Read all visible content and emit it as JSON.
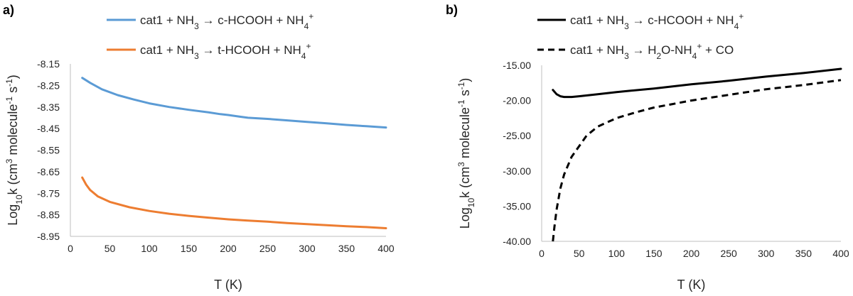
{
  "chart_data": [
    {
      "type": "line",
      "panel_label": "a)",
      "xlabel": "T (K)",
      "ylabel": {
        "pre": "Log",
        "sub": "10",
        "mid": "k (cm",
        "sup1": "3",
        "mid2": " molecule",
        "sup2": "-1",
        "mid3": " s",
        "sup3": "-1",
        "post": ")"
      },
      "xlim": [
        0,
        400
      ],
      "ylim": [
        -8.95,
        -8.15
      ],
      "x_ticks": [
        "0",
        "50",
        "100",
        "150",
        "200",
        "250",
        "300",
        "350",
        "400"
      ],
      "y_ticks": [
        "-8.15",
        "-8.25",
        "-8.35",
        "-8.45",
        "-8.55",
        "-8.65",
        "-8.75",
        "-8.85",
        "-8.95"
      ],
      "grid": false,
      "legend_position": "top",
      "series": [
        {
          "legend": {
            "a": "cat1 + NH",
            "b": "3",
            "c": " → c-HCOOH + NH",
            "d": "4",
            "e": "+"
          },
          "color": "#5B9BD5",
          "dash": "solid",
          "points": [
            [
              15,
              -8.215
            ],
            [
              25,
              -8.238
            ],
            [
              40,
              -8.268
            ],
            [
              60,
              -8.295
            ],
            [
              80,
              -8.315
            ],
            [
              100,
              -8.333
            ],
            [
              125,
              -8.35
            ],
            [
              150,
              -8.363
            ],
            [
              175,
              -8.375
            ],
            [
              190,
              -8.383
            ],
            [
              200,
              -8.387
            ],
            [
              215,
              -8.395
            ],
            [
              225,
              -8.4
            ],
            [
              250,
              -8.405
            ],
            [
              275,
              -8.412
            ],
            [
              300,
              -8.419
            ],
            [
              325,
              -8.426
            ],
            [
              350,
              -8.433
            ],
            [
              375,
              -8.439
            ],
            [
              400,
              -8.445
            ]
          ]
        },
        {
          "legend": {
            "a": "cat1 + NH",
            "b": "3",
            "c": " → t-HCOOH + NH",
            "d": "4",
            "e": "+"
          },
          "color": "#ED7D31",
          "dash": "solid",
          "points": [
            [
              15,
              -8.677
            ],
            [
              20,
              -8.71
            ],
            [
              25,
              -8.735
            ],
            [
              35,
              -8.765
            ],
            [
              50,
              -8.79
            ],
            [
              75,
              -8.815
            ],
            [
              100,
              -8.832
            ],
            [
              125,
              -8.845
            ],
            [
              150,
              -8.855
            ],
            [
              175,
              -8.863
            ],
            [
              200,
              -8.871
            ],
            [
              225,
              -8.877
            ],
            [
              250,
              -8.882
            ],
            [
              275,
              -8.888
            ],
            [
              300,
              -8.893
            ],
            [
              325,
              -8.898
            ],
            [
              350,
              -8.903
            ],
            [
              375,
              -8.907
            ],
            [
              400,
              -8.912
            ]
          ]
        }
      ]
    },
    {
      "type": "line",
      "panel_label": "b)",
      "xlabel": "T (K)",
      "ylabel": {
        "pre": "Log",
        "sub": "10",
        "mid": "k (cm",
        "sup1": "3",
        "mid2": " molecule",
        "sup2": "-1",
        "mid3": " s",
        "sup3": "-1",
        "post": ")"
      },
      "xlim": [
        0,
        400
      ],
      "ylim": [
        -40,
        -15
      ],
      "x_ticks": [
        "0",
        "50",
        "100",
        "150",
        "200",
        "250",
        "300",
        "350",
        "400"
      ],
      "y_ticks": [
        "-15.00",
        "-20.00",
        "-25.00",
        "-30.00",
        "-35.00",
        "-40.00"
      ],
      "grid": false,
      "legend_position": "top",
      "series": [
        {
          "legend": {
            "a": "cat1 + NH",
            "b": "3",
            "c": " → c-HCOOH + NH",
            "d": "4",
            "e": "+"
          },
          "color": "#000000",
          "dash": "solid",
          "points": [
            [
              15,
              -18.5
            ],
            [
              20,
              -19.1
            ],
            [
              25,
              -19.4
            ],
            [
              30,
              -19.5
            ],
            [
              40,
              -19.5
            ],
            [
              50,
              -19.4
            ],
            [
              75,
              -19.1
            ],
            [
              100,
              -18.8
            ],
            [
              150,
              -18.3
            ],
            [
              200,
              -17.7
            ],
            [
              250,
              -17.2
            ],
            [
              300,
              -16.6
            ],
            [
              350,
              -16.1
            ],
            [
              400,
              -15.5
            ]
          ]
        },
        {
          "legend": {
            "a": "cat1 + NH",
            "b": "3",
            "c": " → H",
            "d": "2",
            "e": "O-NH",
            "f": "4",
            "g": "+",
            "h": " + CO"
          },
          "color": "#000000",
          "dash": "dashed",
          "points": [
            [
              15,
              -40.0
            ],
            [
              17,
              -38.0
            ],
            [
              20,
              -35.5
            ],
            [
              25,
              -32.5
            ],
            [
              30,
              -30.5
            ],
            [
              40,
              -28.0
            ],
            [
              50,
              -26.5
            ],
            [
              60,
              -25.0
            ],
            [
              75,
              -23.7
            ],
            [
              100,
              -22.5
            ],
            [
              125,
              -21.7
            ],
            [
              150,
              -21.0
            ],
            [
              175,
              -20.5
            ],
            [
              200,
              -20.0
            ],
            [
              250,
              -19.2
            ],
            [
              300,
              -18.4
            ],
            [
              350,
              -17.8
            ],
            [
              400,
              -17.1
            ]
          ]
        }
      ]
    }
  ]
}
